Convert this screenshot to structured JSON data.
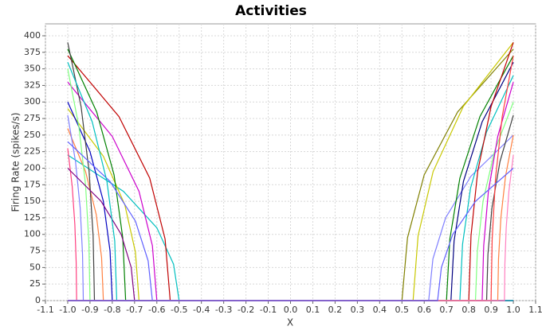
{
  "chart_data": {
    "type": "line",
    "title": "Activities",
    "x_label": "X",
    "y_label": "Firing Rate (spikes/s)",
    "xlim": [
      -1.1,
      1.1
    ],
    "ylim": [
      0,
      418
    ],
    "xticks": [
      -1.1,
      {
        "value": -1,
        "label": "-1.0"
      },
      -0.9,
      -0.8,
      -0.7,
      -0.6,
      -0.5,
      -0.4,
      -0.3,
      -0.2,
      -0.1,
      {
        "value": 0,
        "label": "0.0"
      },
      0.1,
      0.2,
      0.3,
      0.4,
      0.5,
      0.6,
      0.7,
      0.8,
      0.9,
      {
        "value": 1,
        "label": "1.0"
      },
      1.1
    ],
    "yticks": [
      0,
      25,
      50,
      75,
      100,
      125,
      150,
      175,
      200,
      225,
      250,
      275,
      300,
      325,
      350,
      375,
      400
    ],
    "grid": true,
    "series": [
      {
        "color": "#00bfbf",
        "x": [
          -1,
          -0.75,
          -0.6,
          -0.525,
          -0.5,
          1
        ],
        "values": [
          220,
          165,
          110,
          55,
          0,
          0
        ]
      },
      {
        "color": "#c00000",
        "x": [
          -1,
          -0.77,
          -0.632,
          -0.563,
          -0.54,
          1
        ],
        "values": [
          370,
          278,
          185,
          93,
          0,
          0
        ]
      },
      {
        "color": "#cc00cc",
        "x": [
          -1,
          -0.8,
          -0.68,
          -0.62,
          -0.6,
          1
        ],
        "values": [
          330,
          248,
          165,
          83,
          0,
          0
        ]
      },
      {
        "color": "#c8c800",
        "x": [
          -1,
          -0.84,
          -0.744,
          -0.696,
          -0.68,
          1
        ],
        "values": [
          290,
          218,
          145,
          73,
          0,
          0
        ]
      },
      {
        "color": "#008000",
        "x": [
          -1,
          -0.87,
          -0.792,
          -0.753,
          -0.74,
          1
        ],
        "values": [
          380,
          285,
          190,
          95,
          0,
          0
        ]
      },
      {
        "color": "#0000c0",
        "x": [
          -1,
          -0.9,
          -0.84,
          -0.81,
          -0.8,
          1
        ],
        "values": [
          300,
          225,
          150,
          75,
          0,
          0
        ]
      },
      {
        "color": "#ff8040",
        "x": [
          -1,
          -0.92,
          -0.872,
          -0.848,
          -0.84,
          1
        ],
        "values": [
          260,
          195,
          130,
          65,
          0,
          0
        ]
      },
      {
        "color": "#404040",
        "x": [
          -1,
          -0.94,
          -0.904,
          -0.886,
          -0.88,
          1
        ],
        "values": [
          390,
          293,
          195,
          98,
          0,
          0
        ]
      },
      {
        "color": "#80ff80",
        "x": [
          -1,
          -0.95,
          -0.92,
          -0.905,
          -0.9,
          1
        ],
        "values": [
          350,
          263,
          175,
          88,
          0,
          0
        ]
      },
      {
        "color": "#8080ff",
        "x": [
          -1,
          -0.965,
          -0.944,
          -0.9335,
          -0.93,
          1
        ],
        "values": [
          280,
          210,
          140,
          70,
          0,
          0
        ]
      },
      {
        "color": "#ff4080",
        "x": [
          -1,
          -0.98,
          -0.968,
          -0.962,
          -0.96,
          1
        ],
        "values": [
          230,
          173,
          115,
          58,
          0,
          0
        ]
      },
      {
        "color": "#6060ff",
        "x": [
          -1,
          -0.81,
          -0.696,
          -0.639,
          -0.62,
          1
        ],
        "values": [
          240,
          180,
          120,
          60,
          0,
          0
        ]
      },
      {
        "color": "#800080",
        "x": [
          -1,
          -0.85,
          -0.76,
          -0.715,
          -0.7,
          1
        ],
        "values": [
          200,
          150,
          100,
          50,
          0,
          0
        ]
      },
      {
        "color": "#00c0c0",
        "x": [
          -1,
          -0.89,
          -0.824,
          -0.789,
          -0.78,
          1
        ],
        "values": [
          360,
          270,
          180,
          90,
          0,
          0
        ]
      },
      {
        "color": "#808000",
        "x": [
          -1,
          0.5,
          0.525,
          0.6,
          0.75,
          1
        ],
        "values": [
          0,
          0,
          95,
          190,
          285,
          380
        ]
      },
      {
        "color": "#c8c800",
        "x": [
          -1,
          0.55,
          0.5725,
          0.64,
          0.775,
          1
        ],
        "values": [
          0,
          0,
          98,
          195,
          293,
          390
        ]
      },
      {
        "color": "#8080ff",
        "x": [
          -1,
          0.62,
          0.639,
          0.696,
          0.81,
          1
        ],
        "values": [
          0,
          0,
          63,
          125,
          188,
          250
        ]
      },
      {
        "color": "#008000",
        "x": [
          -1,
          0.7,
          0.715,
          0.76,
          0.85,
          1
        ],
        "values": [
          0,
          0,
          93,
          185,
          278,
          370
        ]
      },
      {
        "color": "#000080",
        "x": [
          -1,
          0.72,
          0.734,
          0.776,
          0.86,
          1
        ],
        "values": [
          0,
          0,
          90,
          180,
          270,
          360
        ]
      },
      {
        "color": "#00c0c0",
        "x": [
          -1,
          0.76,
          0.772,
          0.808,
          0.88,
          1
        ],
        "values": [
          0,
          0,
          85,
          170,
          255,
          340
        ]
      },
      {
        "color": "#c00000",
        "x": [
          -1,
          0.8,
          0.81,
          0.84,
          0.9,
          1
        ],
        "values": [
          0,
          0,
          98,
          195,
          293,
          390
        ]
      },
      {
        "color": "#80ff80",
        "x": [
          -1,
          0.83,
          0.8385,
          0.864,
          0.915,
          1
        ],
        "values": [
          0,
          0,
          75,
          150,
          225,
          300
        ]
      },
      {
        "color": "#cc00cc",
        "x": [
          -1,
          0.86,
          0.867,
          0.888,
          0.93,
          1
        ],
        "values": [
          0,
          0,
          83,
          165,
          248,
          330
        ]
      },
      {
        "color": "#404040",
        "x": [
          -1,
          0.88,
          0.886,
          0.904,
          0.94,
          1
        ],
        "values": [
          0,
          0,
          70,
          140,
          210,
          280
        ]
      },
      {
        "color": "#ff4040",
        "x": [
          -1,
          0.9,
          0.905,
          0.92,
          0.95,
          1
        ],
        "values": [
          0,
          0,
          93,
          185,
          278,
          370
        ]
      },
      {
        "color": "#ff8040",
        "x": [
          -1,
          0.93,
          0.9335,
          0.944,
          0.965,
          1
        ],
        "values": [
          0,
          0,
          63,
          125,
          188,
          250
        ]
      },
      {
        "color": "#ff80c0",
        "x": [
          -1,
          0.96,
          0.962,
          0.968,
          0.98,
          1
        ],
        "values": [
          0,
          0,
          55,
          110,
          165,
          220
        ]
      },
      {
        "color": "#6060ff",
        "x": [
          -1,
          0.66,
          0.677,
          0.728,
          0.83,
          1
        ],
        "values": [
          0,
          0,
          50,
          100,
          150,
          200
        ]
      }
    ]
  }
}
